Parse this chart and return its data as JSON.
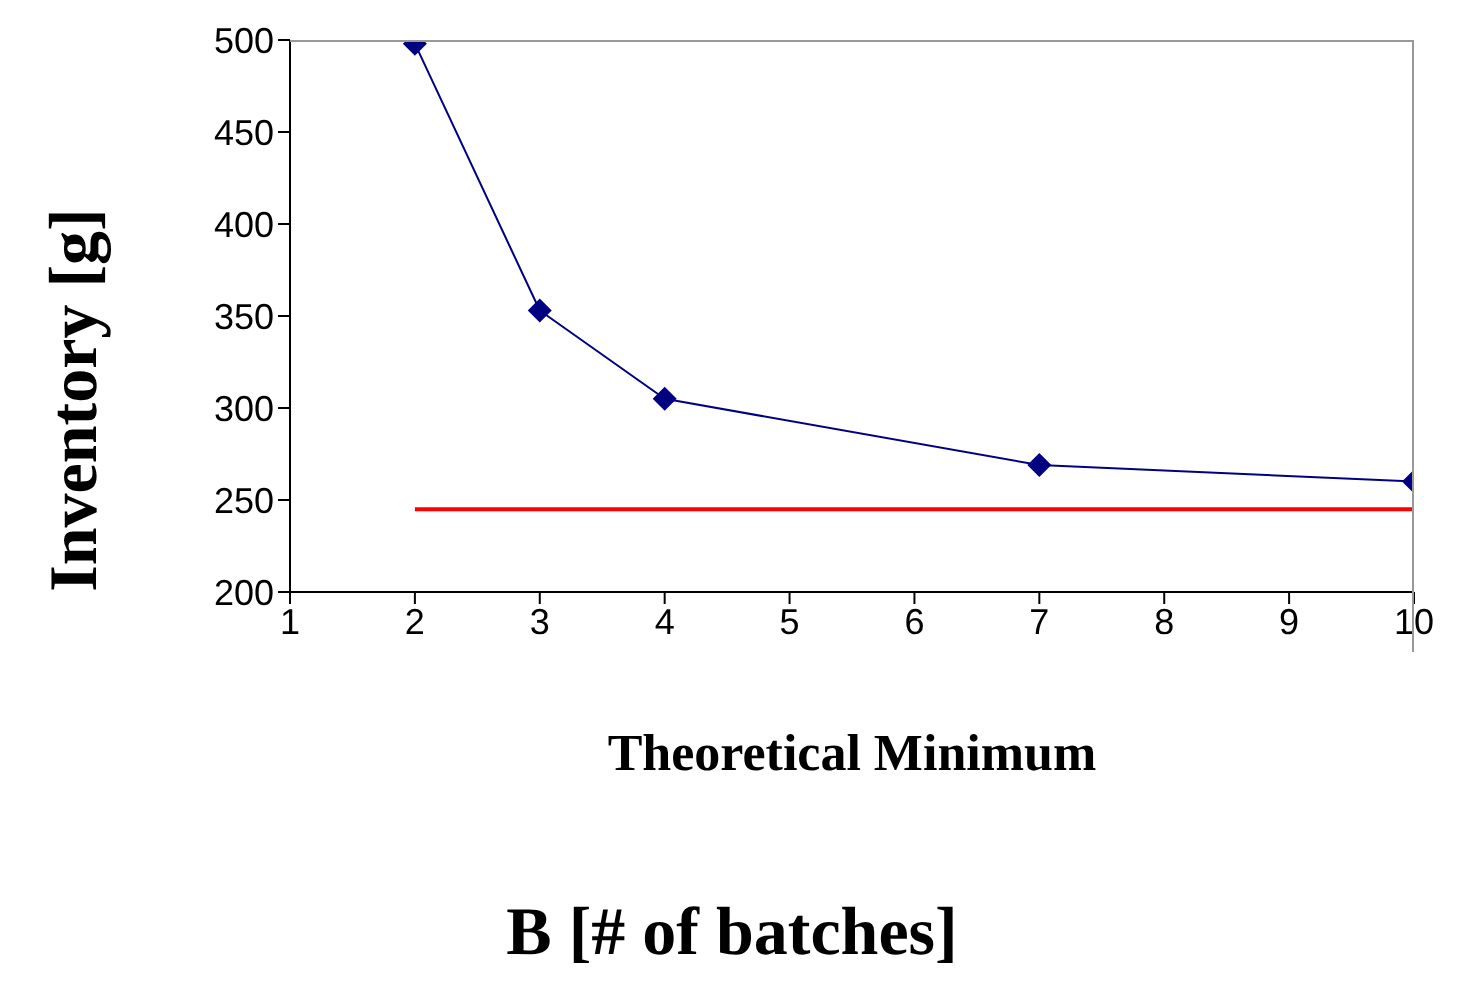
{
  "chart_data": {
    "type": "line",
    "xlabel": "B [# of batches]",
    "ylabel": "Inventory [g]",
    "xlim": [
      1,
      10
    ],
    "xticks": [
      1,
      2,
      3,
      4,
      5,
      6,
      7,
      8,
      9,
      10
    ],
    "ylim": [
      200,
      500
    ],
    "yticks": [
      200,
      250,
      300,
      350,
      400,
      450,
      500
    ],
    "annotations": [
      "Theoretical Minimum"
    ],
    "series": [
      {
        "color": "#000080",
        "x": [
          2,
          3,
          4,
          7,
          10
        ],
        "values": [
          498,
          353,
          305,
          269,
          260
        ],
        "marker": "diamond"
      },
      {
        "color": "#ff0000",
        "x": [
          2,
          10
        ],
        "values": [
          245,
          245
        ],
        "marker": "none"
      }
    ]
  }
}
